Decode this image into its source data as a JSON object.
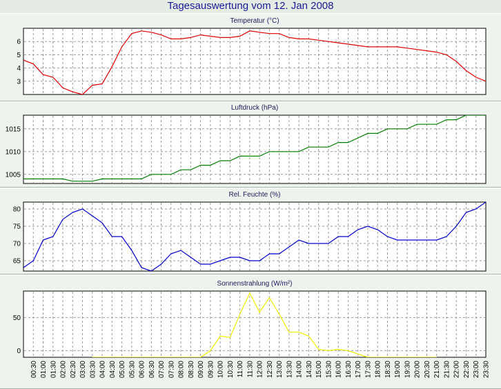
{
  "title": "Tagesauswertung vom 12. Jan 2008",
  "chart_data": [
    {
      "type": "line",
      "title": "Temperatur (°C)",
      "color": "#e00000",
      "ylim": [
        2,
        7
      ],
      "yticks": [
        3,
        4,
        5,
        6
      ],
      "x": [
        "00:00",
        "00:30",
        "01:00",
        "01:30",
        "02:00",
        "02:30",
        "03:00",
        "03:30",
        "04:00",
        "04:30",
        "05:00",
        "05:30",
        "06:00",
        "06:30",
        "07:00",
        "07:30",
        "08:00",
        "08:30",
        "09:00",
        "09:30",
        "10:00",
        "10:30",
        "11:00",
        "11:30",
        "12:00",
        "12:30",
        "13:00",
        "13:30",
        "14:00",
        "14:30",
        "15:00",
        "15:30",
        "16:00",
        "16:30",
        "17:00",
        "17:30",
        "18:00",
        "18:30",
        "19:00",
        "19:30",
        "20:00",
        "20:30",
        "21:00",
        "21:30",
        "22:00",
        "22:30",
        "23:00",
        "23:30"
      ],
      "values": [
        4.6,
        4.3,
        3.5,
        3.3,
        2.5,
        2.2,
        2.0,
        2.7,
        2.8,
        4.1,
        5.6,
        6.6,
        6.8,
        6.7,
        6.5,
        6.2,
        6.2,
        6.3,
        6.5,
        6.4,
        6.3,
        6.3,
        6.4,
        6.8,
        6.7,
        6.6,
        6.6,
        6.3,
        6.2,
        6.2,
        6.1,
        6.0,
        5.9,
        5.8,
        5.7,
        5.6,
        5.6,
        5.6,
        5.6,
        5.5,
        5.4,
        5.3,
        5.2,
        5.0,
        4.5,
        3.8,
        3.3,
        3.0
      ],
      "grid": true
    },
    {
      "type": "line",
      "title": "Luftdruck (hPa)",
      "color": "#008000",
      "ylim": [
        1003,
        1018
      ],
      "yticks": [
        1005,
        1010,
        1015
      ],
      "x": [
        "00:00",
        "00:30",
        "01:00",
        "01:30",
        "02:00",
        "02:30",
        "03:00",
        "03:30",
        "04:00",
        "04:30",
        "05:00",
        "05:30",
        "06:00",
        "06:30",
        "07:00",
        "07:30",
        "08:00",
        "08:30",
        "09:00",
        "09:30",
        "10:00",
        "10:30",
        "11:00",
        "11:30",
        "12:00",
        "12:30",
        "13:00",
        "13:30",
        "14:00",
        "14:30",
        "15:00",
        "15:30",
        "16:00",
        "16:30",
        "17:00",
        "17:30",
        "18:00",
        "18:30",
        "19:00",
        "19:30",
        "20:00",
        "20:30",
        "21:00",
        "21:30",
        "22:00",
        "22:30",
        "23:00",
        "23:30"
      ],
      "values": [
        1004,
        1004,
        1004,
        1004,
        1004,
        1003.5,
        1003.5,
        1003.5,
        1004,
        1004,
        1004,
        1004,
        1004,
        1005,
        1005,
        1005,
        1006,
        1006,
        1007,
        1007,
        1008,
        1008,
        1009,
        1009,
        1009,
        1010,
        1010,
        1010,
        1010,
        1011,
        1011,
        1011,
        1012,
        1012,
        1013,
        1014,
        1014,
        1015,
        1015,
        1015,
        1016,
        1016,
        1016,
        1017,
        1017,
        1018,
        1018,
        1018
      ],
      "grid": true
    },
    {
      "type": "line",
      "title": "Rel. Feuchte (%)",
      "color": "#0000d0",
      "ylim": [
        62,
        82
      ],
      "yticks": [
        65,
        70,
        75,
        80
      ],
      "x": [
        "00:00",
        "00:30",
        "01:00",
        "01:30",
        "02:00",
        "02:30",
        "03:00",
        "03:30",
        "04:00",
        "04:30",
        "05:00",
        "05:30",
        "06:00",
        "06:30",
        "07:00",
        "07:30",
        "08:00",
        "08:30",
        "09:00",
        "09:30",
        "10:00",
        "10:30",
        "11:00",
        "11:30",
        "12:00",
        "12:30",
        "13:00",
        "13:30",
        "14:00",
        "14:30",
        "15:00",
        "15:30",
        "16:00",
        "16:30",
        "17:00",
        "17:30",
        "18:00",
        "18:30",
        "19:00",
        "19:30",
        "20:00",
        "20:30",
        "21:00",
        "21:30",
        "22:00",
        "22:30",
        "23:00",
        "23:30"
      ],
      "values": [
        63,
        65,
        71,
        72,
        77,
        79,
        80,
        78,
        76,
        72,
        72,
        68,
        63,
        62,
        64,
        67,
        68,
        66,
        64,
        64,
        65,
        66,
        66,
        65,
        65,
        67,
        67,
        69,
        71,
        70,
        70,
        70,
        72,
        72,
        74,
        75,
        74,
        72,
        71,
        71,
        71,
        71,
        71,
        72,
        75,
        79,
        80,
        82
      ],
      "grid": true
    },
    {
      "type": "line",
      "title": "Sonnenstrahlung (W/m²)",
      "color": "#f0f000",
      "ylim": [
        -10,
        90
      ],
      "yticks": [
        0,
        50
      ],
      "x": [
        "00:00",
        "00:30",
        "01:00",
        "01:30",
        "02:00",
        "02:30",
        "03:00",
        "03:30",
        "04:00",
        "04:30",
        "05:00",
        "05:30",
        "06:00",
        "06:30",
        "07:00",
        "07:30",
        "08:00",
        "08:30",
        "09:00",
        "09:30",
        "10:00",
        "10:30",
        "11:00",
        "11:30",
        "12:00",
        "12:30",
        "13:00",
        "13:30",
        "14:00",
        "14:30",
        "15:00",
        "15:30",
        "16:00",
        "16:30",
        "17:00",
        "17:30",
        "18:00",
        "18:30",
        "19:00",
        "19:30",
        "20:00",
        "20:30",
        "21:00",
        "21:30",
        "22:00",
        "22:30",
        "23:00",
        "23:30"
      ],
      "values": [
        null,
        null,
        null,
        null,
        null,
        null,
        null,
        -10,
        -10,
        -10,
        -10,
        -10,
        -10,
        -10,
        -10,
        -10,
        -10,
        -10,
        -10,
        0,
        22,
        20,
        55,
        87,
        58,
        80,
        55,
        28,
        28,
        22,
        2,
        0,
        2,
        0,
        -5,
        -10,
        -10,
        -10,
        -10,
        -10,
        -10,
        -10,
        -10,
        null,
        null,
        null,
        null,
        null
      ],
      "grid": true
    }
  ],
  "xtick_labels": [
    "00:30",
    "01:00",
    "01:30",
    "02:00",
    "02:30",
    "03:00",
    "03:30",
    "04:00",
    "04:30",
    "05:00",
    "05:30",
    "06:00",
    "06:30",
    "07:00",
    "07:30",
    "08:00",
    "08:30",
    "09:00",
    "09:30",
    "10:00",
    "10:30",
    "11:00",
    "11:30",
    "12:00",
    "12:30",
    "13:00",
    "13:30",
    "14:00",
    "14:30",
    "15:00",
    "15:30",
    "16:00",
    "16:30",
    "17:00",
    "17:30",
    "18:00",
    "18:30",
    "19:00",
    "19:30",
    "20:00",
    "20:30",
    "21:00",
    "21:30",
    "22:00",
    "22:30",
    "23:00",
    "23:30"
  ]
}
